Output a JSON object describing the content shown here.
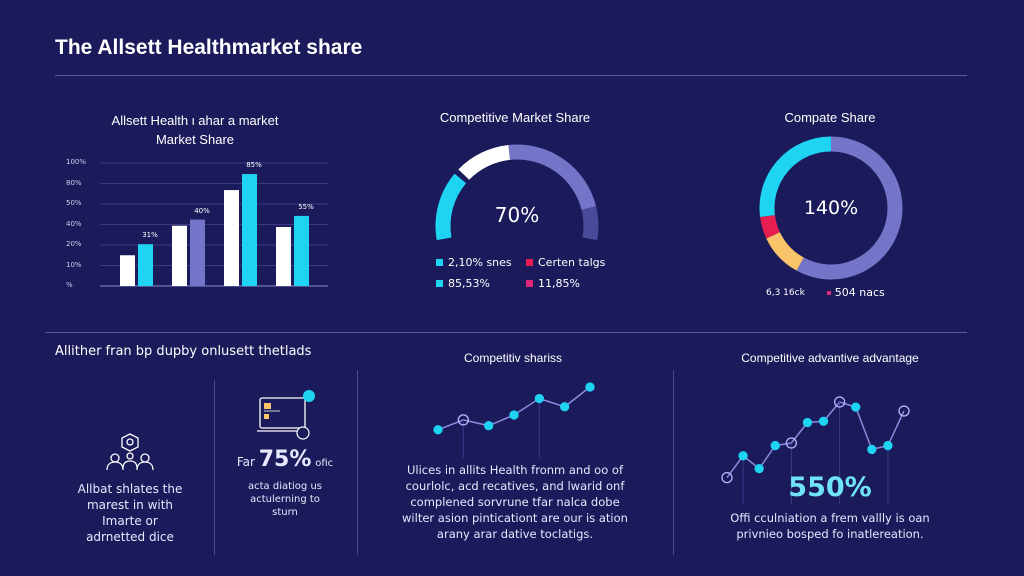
{
  "title": "The Allsett Healthmarket share",
  "colors": {
    "background": "#1b1a5a",
    "cyan": "#1fd3f2",
    "white": "#ffffff",
    "purple": "#7474c8",
    "dark_purple": "#4a4a9a",
    "red": "#e81e50",
    "yellow": "#f9c36a",
    "pink": "#e0287a"
  },
  "bar_panel": {
    "title_line1": "Allsett Health ι ahar a market",
    "title_line2": "Market Share"
  },
  "gauge_panel": {
    "title": "Competitive Market Share",
    "center_value": "70%",
    "legend": [
      {
        "label": "2,10% snes",
        "color": "#1fd3f2"
      },
      {
        "label": "Certen talgs",
        "color": "#e81e50"
      },
      {
        "label": "85,53%",
        "color": "#1fd3f2"
      },
      {
        "label": "11,85%",
        "color": "#e0287a"
      }
    ]
  },
  "donut_panel": {
    "title": "Compate Share",
    "center_value": "140%",
    "legend": [
      {
        "label": "6,3 16ck"
      },
      {
        "label": "504 nacs",
        "color": "#e0287a"
      }
    ]
  },
  "bottom": {
    "heading": "Allither fran bp dupby onlusett thetlads",
    "card1": {
      "icon": "people-network-icon",
      "text": [
        "Allbat shlates the",
        "marest in with",
        "Imarte or",
        "adrnetted dice"
      ]
    },
    "card2": {
      "icon": "laptop-dashboard-icon",
      "prefix": "Far",
      "value": "75%",
      "suffix": "ofic",
      "text": [
        "acta diatiog us",
        "actulerning to",
        "sturn"
      ]
    },
    "card3": {
      "title": "Competitiv shariss",
      "text": [
        "Ulices in allits Health fronm and oo of",
        "courlolc, acd recatives, and lwarid onf",
        "complened sorvrune tfar nalca dobe",
        "wilter asion pinticationt are our is ation",
        "arany arar dative toclatigs."
      ]
    },
    "card4": {
      "title": "Competitive advantive advantage",
      "value": "550%",
      "text": [
        "Offi cculniation a frem vallly is oan",
        "privnieo bosped fo inatlereation."
      ]
    }
  },
  "chart_data": [
    {
      "type": "bar",
      "title": "Allsett Health ι ahar a market Market Share",
      "yticks": [
        "100%",
        "80%",
        "50%",
        "40%",
        "20%",
        "10%",
        "%"
      ],
      "ylim": [
        0,
        100
      ],
      "series": [
        {
          "values": [
            25,
            49,
            78,
            48
          ],
          "colors": [
            "#ffffff",
            "#ffffff",
            "#ffffff",
            "#ffffff"
          ]
        },
        {
          "values": [
            34,
            54,
            91,
            57
          ],
          "colors": [
            "#1fd3f2",
            "#7474c8",
            "#1fd3f2",
            "#1fd3f2"
          ]
        }
      ],
      "data_labels": [
        "31%",
        "40%",
        "85%",
        "55%"
      ]
    },
    {
      "type": "gauge",
      "title": "Competitive Market Share",
      "segments": [
        {
          "color": "#1fd3f2",
          "value": 25
        },
        {
          "color": "#ffffff",
          "value": 22
        },
        {
          "color": "#7474c8",
          "value": 41
        },
        {
          "color": "#4a4a9a",
          "value": 12
        }
      ]
    },
    {
      "type": "pie",
      "title": "Compate Share",
      "segments": [
        {
          "color": "#7474c8",
          "value": 58
        },
        {
          "color": "#f9c36a",
          "value": 10
        },
        {
          "color": "#e81e50",
          "value": 5
        },
        {
          "color": "#1fd3f2",
          "value": 27
        }
      ]
    },
    {
      "type": "line",
      "title": "Competitiv shariss",
      "values": [
        10,
        22,
        15,
        28,
        48,
        38,
        62
      ]
    },
    {
      "type": "line",
      "title": "Competitive advantive advantage",
      "values": [
        5,
        22,
        12,
        30,
        32,
        48,
        49,
        64,
        60,
        27,
        30,
        57
      ]
    }
  ]
}
